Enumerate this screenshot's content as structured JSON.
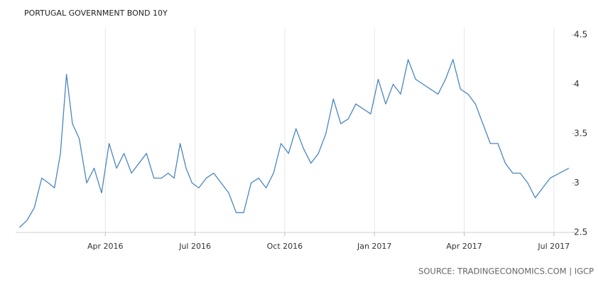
{
  "chart_data": {
    "type": "line",
    "title": "PORTUGAL GOVERNMENT BOND 10Y",
    "source": "SOURCE: TRADINGECONOMICS.COM | IGCP",
    "x": [
      "2016-01",
      "2016-01",
      "2016-01",
      "2016-01",
      "2016-02",
      "2016-02",
      "2016-02",
      "2016-02",
      "2016-02",
      "2016-03",
      "2016-03",
      "2016-03",
      "2016-03",
      "2016-04",
      "2016-04",
      "2016-04",
      "2016-04",
      "2016-05",
      "2016-05",
      "2016-05",
      "2016-05",
      "2016-06",
      "2016-06",
      "2016-06",
      "2016-06",
      "2016-06",
      "2016-07",
      "2016-07",
      "2016-07",
      "2016-07",
      "2016-08",
      "2016-08",
      "2016-08",
      "2016-08",
      "2016-09",
      "2016-09",
      "2016-09",
      "2016-09",
      "2016-10",
      "2016-10",
      "2016-10",
      "2016-10",
      "2016-11",
      "2016-11",
      "2016-11",
      "2016-11",
      "2016-12",
      "2016-12",
      "2016-12",
      "2016-12",
      "2017-01",
      "2017-01",
      "2017-01",
      "2017-01",
      "2017-02",
      "2017-02",
      "2017-02",
      "2017-02",
      "2017-03",
      "2017-03",
      "2017-03",
      "2017-03",
      "2017-04",
      "2017-04",
      "2017-04",
      "2017-04",
      "2017-05",
      "2017-05",
      "2017-05",
      "2017-05",
      "2017-06",
      "2017-06",
      "2017-06",
      "2017-06",
      "2017-07"
    ],
    "series": [
      {
        "name": "Portugal Government Bond 10Y",
        "color": "#4a86c0",
        "values": [
          2.55,
          2.62,
          2.75,
          3.05,
          3.0,
          2.95,
          3.3,
          4.1,
          3.6,
          3.45,
          3.0,
          3.15,
          2.9,
          3.4,
          3.15,
          3.3,
          3.1,
          3.2,
          3.3,
          3.05,
          3.05,
          3.1,
          3.05,
          3.4,
          3.15,
          3.0,
          2.95,
          3.05,
          3.1,
          3.0,
          2.9,
          2.7,
          2.7,
          3.0,
          3.05,
          2.95,
          3.1,
          3.4,
          3.3,
          3.55,
          3.35,
          3.2,
          3.3,
          3.5,
          3.85,
          3.6,
          3.65,
          3.8,
          3.75,
          3.7,
          4.05,
          3.8,
          4.0,
          3.9,
          4.25,
          4.05,
          4.0,
          3.95,
          3.9,
          4.05,
          4.25,
          3.95,
          3.9,
          3.8,
          3.6,
          3.4,
          3.4,
          3.2,
          3.1,
          3.1,
          3.0,
          2.85,
          2.95,
          3.05,
          3.15
        ]
      }
    ],
    "xlim": [
      "2016-01",
      "2017-07"
    ],
    "xticks": [
      {
        "value": "2016-04",
        "label": "Apr 2016"
      },
      {
        "value": "2016-07",
        "label": "Jul 2016"
      },
      {
        "value": "2016-10",
        "label": "Oct 2016"
      },
      {
        "value": "2017-01",
        "label": "Jan 2017"
      },
      {
        "value": "2017-04",
        "label": "Apr 2017"
      },
      {
        "value": "2017-07",
        "label": "Jul 2017"
      }
    ],
    "ylim": [
      2.5,
      4.5
    ],
    "yticks": [
      2.5,
      3,
      3.5,
      4,
      4.5
    ],
    "grid": true
  }
}
